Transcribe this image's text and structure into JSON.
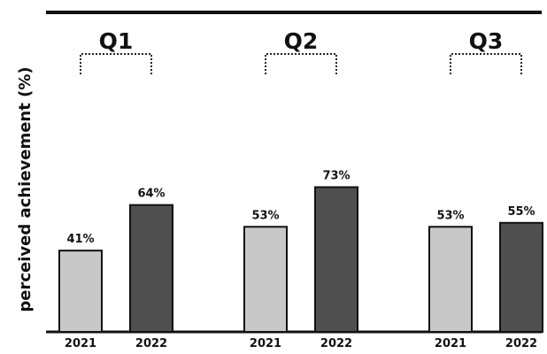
{
  "chart_data": {
    "type": "bar",
    "title": "",
    "xlabel": "",
    "ylabel": "perceived achievement (%)",
    "ylim": [
      0,
      100
    ],
    "grid": false,
    "legend": "none",
    "groups": [
      {
        "name": "Q1",
        "categories": [
          "2021",
          "2022"
        ],
        "values": [
          41,
          64
        ],
        "labels": [
          "41%",
          "64%"
        ]
      },
      {
        "name": "Q2",
        "categories": [
          "2021",
          "2022"
        ],
        "values": [
          53,
          73
        ],
        "labels": [
          "53%",
          "73%"
        ]
      },
      {
        "name": "Q3",
        "categories": [
          "2021",
          "2022"
        ],
        "values": [
          53,
          55
        ],
        "labels": [
          "53%",
          "55%"
        ]
      }
    ],
    "colors": {
      "2021": "#c8c8c8",
      "2022": "#505050",
      "outline": "#111111"
    }
  }
}
